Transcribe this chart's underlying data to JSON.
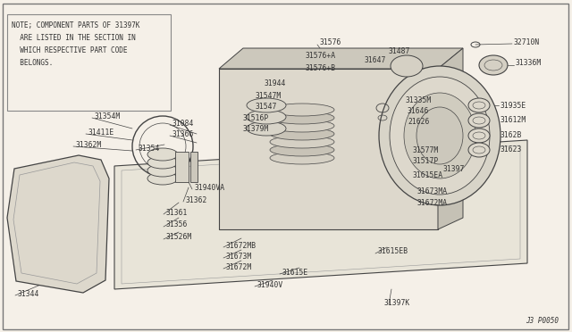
{
  "bg_color": "#f5f0e8",
  "border_color": "#888888",
  "line_color": "#444444",
  "text_color": "#333333",
  "note_text_lines": [
    "NOTE; COMPONENT PARTS OF 31397K",
    "  ARE LISTED IN THE SECTION IN",
    "  WHICH RESPECTIVE PART CODE",
    "  BELONGS."
  ],
  "diagram_id": "J3 P0050",
  "font_size": 5.8,
  "note_font_size": 5.6
}
